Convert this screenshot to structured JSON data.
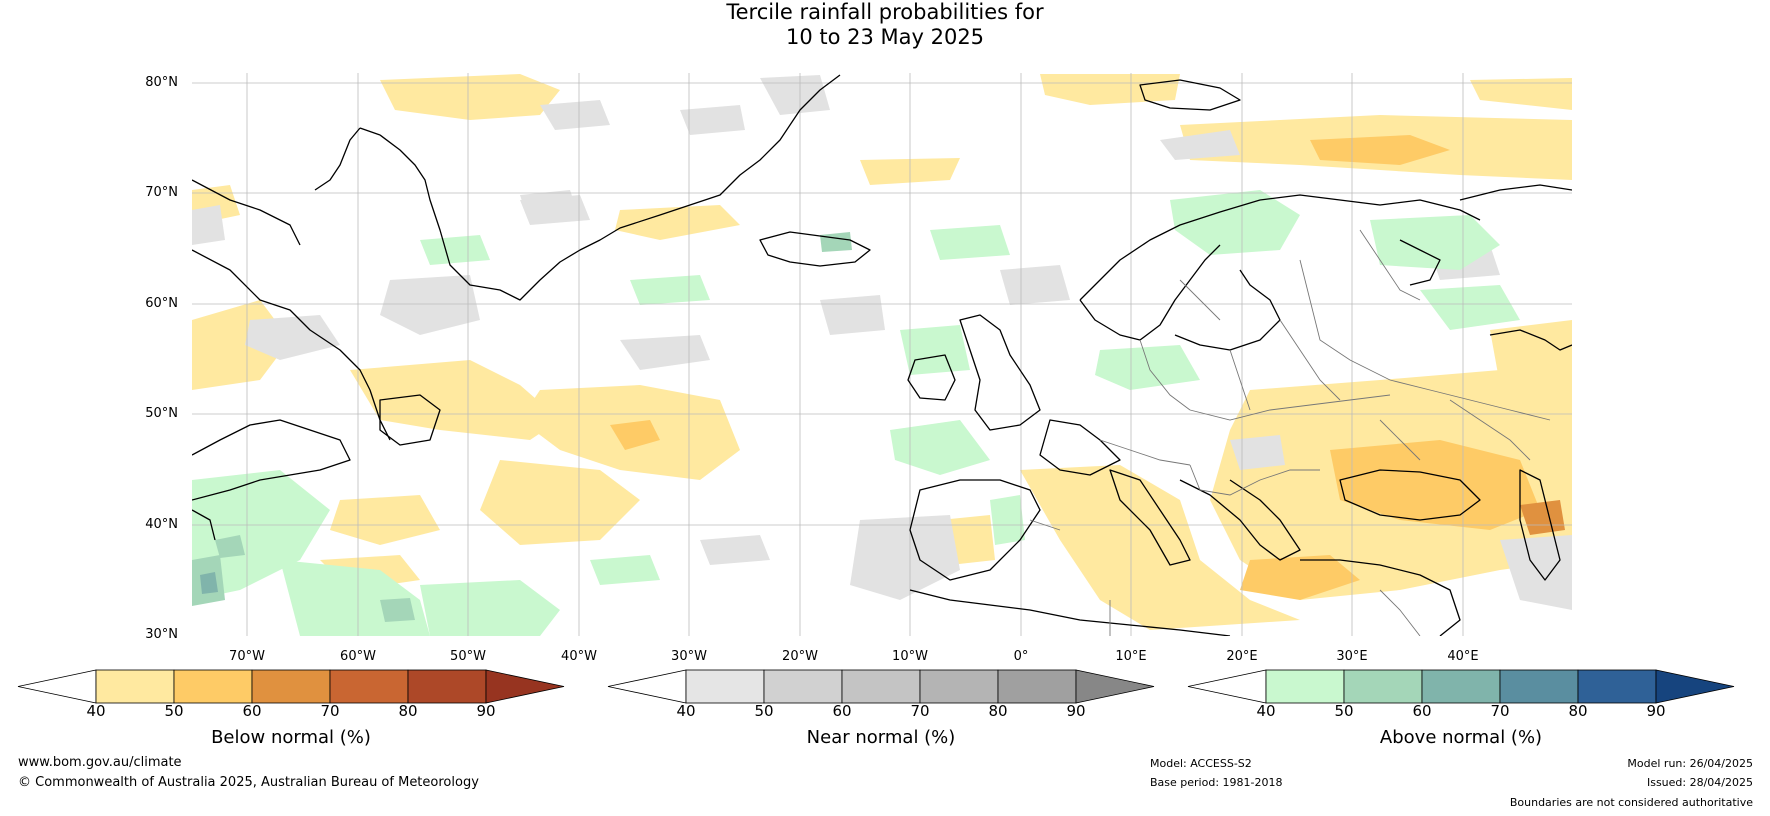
{
  "title_line1": "Tercile rainfall probabilities for",
  "title_line2": "10 to 23 May 2025",
  "lat_labels": [
    "80°N",
    "70°N",
    "60°N",
    "50°N",
    "40°N",
    "30°N"
  ],
  "lon_labels": [
    "70°W",
    "60°W",
    "50°W",
    "40°W",
    "30°W",
    "20°W",
    "10°W",
    "0°",
    "10°E",
    "20°E",
    "30°E",
    "40°E"
  ],
  "colorbars": {
    "below": {
      "title": "Below normal (%)",
      "ticks": [
        "40",
        "50",
        "60",
        "70",
        "80",
        "90"
      ],
      "colors": [
        "#ffffff",
        "#ffe9a0",
        "#fecb66",
        "#e0913f",
        "#c96632",
        "#ad4828",
        "#973420"
      ]
    },
    "near": {
      "title": "Near normal (%)",
      "ticks": [
        "40",
        "50",
        "60",
        "70",
        "80",
        "90"
      ],
      "colors": [
        "#ffffff",
        "#e5e5e5",
        "#d1d1d1",
        "#c4c4c4",
        "#b4b4b4",
        "#a0a0a0",
        "#878787"
      ]
    },
    "above": {
      "title": "Above normal (%)",
      "ticks": [
        "40",
        "50",
        "60",
        "70",
        "80",
        "90"
      ],
      "colors": [
        "#ffffff",
        "#c9f8cf",
        "#a4d6b8",
        "#80b4ab",
        "#5a8ea0",
        "#2f6197",
        "#16447e"
      ]
    }
  },
  "footer": {
    "website": "www.bom.gov.au/climate",
    "copyright": "© Commonwealth of Australia 2025, Australian Bureau of Meteorology",
    "model": "Model: ACCESS-S2",
    "base_period": "Base period: 1981-2018",
    "model_run": "Model run: 26/04/2025",
    "issued": "Issued: 28/04/2025",
    "boundaries_note": "Boundaries are not considered authoritative"
  }
}
